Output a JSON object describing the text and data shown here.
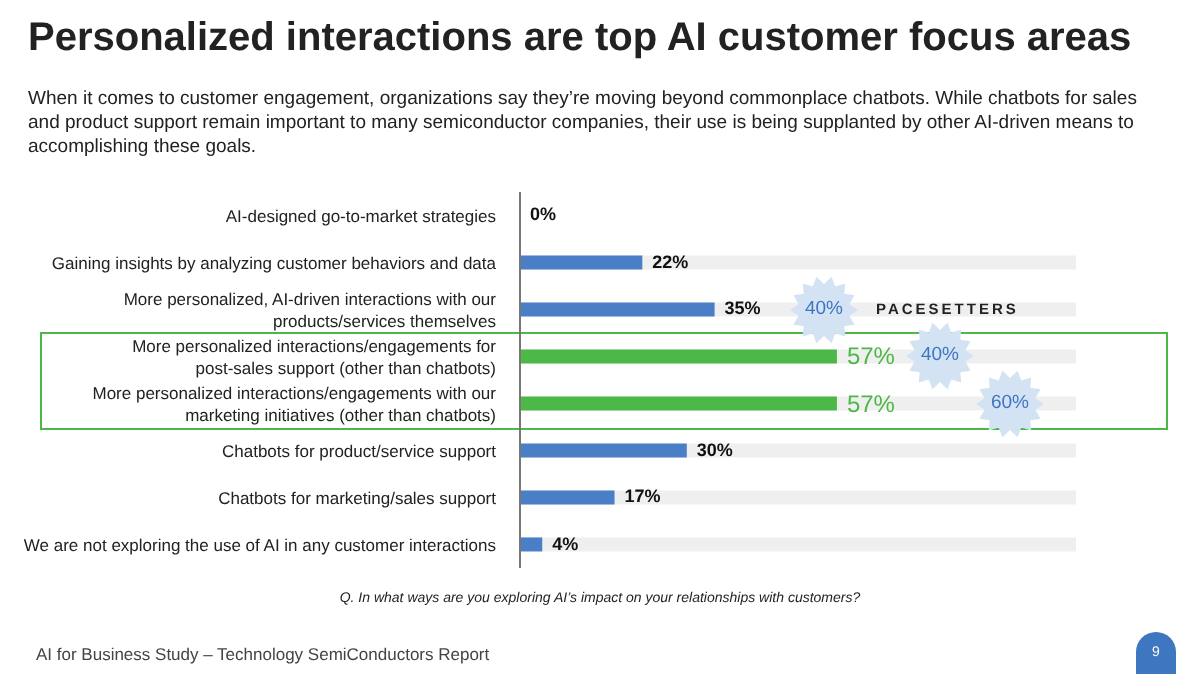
{
  "chart_data": {
    "type": "bar",
    "orientation": "horizontal",
    "title": "Personalized interactions are top AI customer focus areas",
    "subtitle": "When it comes to customer engagement, organizations say they’re moving beyond commonplace chatbots. While chatbots for sales and product support remain important to many semiconductor companies, their use is being supplanted by other AI-driven means to accomplishing these goals.",
    "categories": [
      "AI-designed go-to-market strategies",
      "Gaining insights by analyzing customer behaviors and data",
      "More personalized, AI-driven interactions with our products/services themselves",
      "More personalized interactions/engagements for post-sales support (other than chatbots)",
      "More personalized interactions/engagements with our marketing initiatives (other than chatbots)",
      "Chatbots for product/service support",
      "Chatbots for marketing/sales support",
      "We are not exploring the use of AI in any customer interactions"
    ],
    "values": [
      0,
      22,
      35,
      57,
      57,
      30,
      17,
      4
    ],
    "colors": [
      "#4a7fc8",
      "#4a7fc8",
      "#4a7fc8",
      "#4cb848",
      "#4cb848",
      "#4a7fc8",
      "#4a7fc8",
      "#4a7fc8"
    ],
    "value_labels": [
      "0%",
      "22%",
      "35%",
      "57%",
      "57%",
      "30%",
      "17%",
      "4%"
    ],
    "xlim": [
      0,
      100
    ],
    "tick_labels": "y",
    "annotations": [
      {
        "text": "40%",
        "y": "More personalized, AI-driven interactions with our products/services themselves"
      },
      "PACESETTERS",
      {
        "text": "40%",
        "y": "More personalized interactions/engagements for post-sales support (other than chatbots)"
      },
      {
        "text": "60%",
        "y": "More personalized interactions/engagements with our marketing initiatives (other than chatbots)"
      },
      "Q. In what ways are you exploring AI’s impact on your relationships with customers?",
      "AI for Business Study – Technology SemiConductors Report",
      "9"
    ]
  }
}
